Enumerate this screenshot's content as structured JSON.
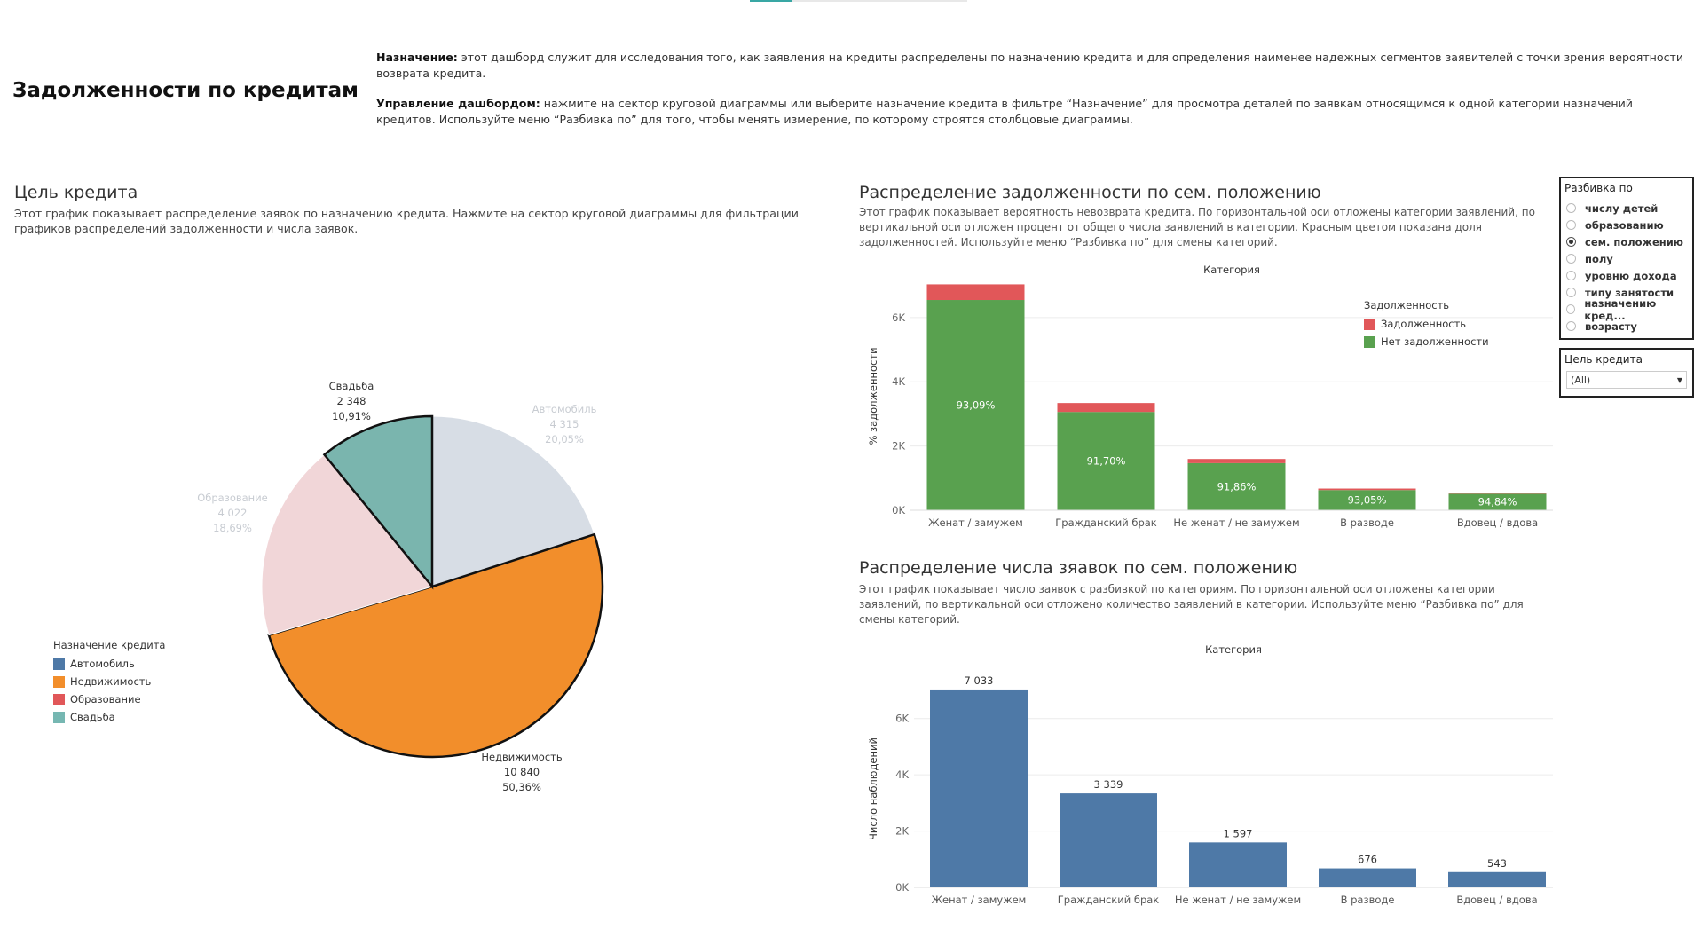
{
  "title": "Задолженности по кредитам",
  "intro": {
    "purpose_label": "Назначение:",
    "purpose_text": " этот дашборд служит для исследования того, как заявления на кредиты распределены по назначению кредита и для определения наименее надежных сегментов заявителей с точки зрения вероятности возврата кредита.",
    "control_label": "Управление дашбордом:",
    "control_text": " нажмите на сектор круговой диаграммы или выберите назначение кредита в фильтре “Назначение” для просмотра деталей по заявкам относящимся к одной категории назначений кредитов. Используйте меню “Разбивка по” для того, чтобы менять измерение, по которому строятся столбцовые диаграммы."
  },
  "pie_section": {
    "title": "Цель кредита",
    "description": "Этот график показывает распределение заявок по назначению кредита. Нажмите на сектор круговой диаграммы для фильтрации графиков распределений задолженности и числа заявок.",
    "legend_title": "Назначение кредита"
  },
  "debt_section": {
    "title": "Распределение задолженности по сем. положению",
    "description": "Этот график показывает вероятность невозврата кредита. По горизонтальной оси отложены категории заявлений, по вертикальной оси отложен процент от общего числа заявлений в категории. Красным цветом показана доля задолженностей. Используйте меню “Разбивка по” для смены категорий.",
    "legend_title": "Задолженность"
  },
  "count_section": {
    "title": "Распределение числа зяавок по сем. положению",
    "description": "Этот график показывает число заявок с разбивкой по категориям. По горизонтальной оси отложены категории заявлений, по вертикальной оси отложено количество заявлений в категории. Используйте меню “Разбивка по” для смены категорий."
  },
  "breakdown_panel": {
    "title": "Разбивка по",
    "options": [
      "числу детей",
      "образованию",
      "сем. положению",
      "полу",
      "уровню дохода",
      "типу занятости",
      "назначению кред...",
      "возрасту"
    ],
    "selected_index": 2
  },
  "filter_panel": {
    "title": "Цель кредита",
    "value": "(All)"
  },
  "chart_data": [
    {
      "type": "pie",
      "categories": [
        "Автомобиль",
        "Недвижимость",
        "Образование",
        "Свадьба"
      ],
      "values": [
        4315,
        10840,
        4022,
        2348
      ],
      "value_labels": [
        "4 315",
        "10 840",
        "4 022",
        "2 348"
      ],
      "percent_labels": [
        "20,05%",
        "50,36%",
        "18,69%",
        "10,91%"
      ],
      "colors": [
        "#4e79a7",
        "#f28e2b",
        "#e15759",
        "#76b7b2"
      ],
      "faded_colors": [
        "#d7dde5",
        "#f28e2b",
        "#f1d6d8",
        "#7ab5ae"
      ],
      "highlighted": [
        false,
        true,
        false,
        true
      ],
      "legend": [
        "Автомобиль",
        "Недвижимость",
        "Образование",
        "Свадьба"
      ],
      "legend_placement": "bottom-left"
    },
    {
      "type": "bar",
      "stacked": true,
      "title": "Категория",
      "ylabel": "% задолженности",
      "categories": [
        "Женат / замужем",
        "Гражданский брак",
        "Не женат / не замужем",
        "В разводе",
        "Вдовец / вдова"
      ],
      "series": [
        {
          "name": "Нет задолженности",
          "color": "#59a14f",
          "values": [
            6547,
            3062,
            1467,
            629,
            515
          ]
        },
        {
          "name": "Задолженность",
          "color": "#e15759",
          "values": [
            486,
            277,
            130,
            47,
            28
          ]
        }
      ],
      "bar_labels": [
        "93,09%",
        "91,70%",
        "91,86%",
        "93,05%",
        "94,84%"
      ],
      "y_ticks": [
        0,
        2000,
        4000,
        6000
      ],
      "y_tick_labels": [
        "0K",
        "2K",
        "4K",
        "6K"
      ],
      "ylim": [
        0,
        7100
      ],
      "legend": [
        "Задолженность",
        "Нет задолженности"
      ],
      "legend_placement": "top-right",
      "grid": true
    },
    {
      "type": "bar",
      "title": "Категория",
      "ylabel": "Число наблюдений",
      "categories": [
        "Женат / замужем",
        "Гражданский брак",
        "Не женат / не замужем",
        "В разводе",
        "Вдовец / вдова"
      ],
      "values": [
        7033,
        3339,
        1597,
        676,
        543
      ],
      "value_labels": [
        "7 033",
        "3 339",
        "1 597",
        "676",
        "543"
      ],
      "color": "#4e79a7",
      "y_ticks": [
        0,
        2000,
        4000,
        6000
      ],
      "y_tick_labels": [
        "0K",
        "2K",
        "4K",
        "6K"
      ],
      "ylim": [
        0,
        7000
      ],
      "grid": true
    }
  ]
}
